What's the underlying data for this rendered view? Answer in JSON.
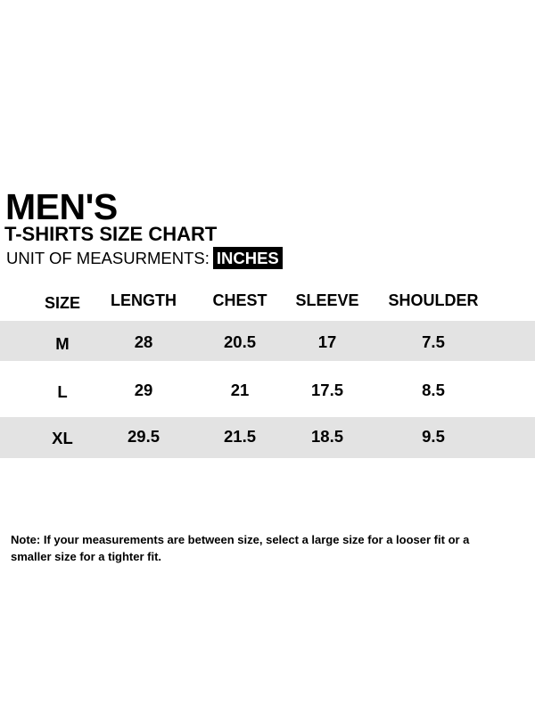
{
  "title": "MEN'S",
  "subtitle": "T-SHIRTS SIZE CHART",
  "unit_label": "UNIT OF MEASURMENTS:",
  "unit_value": "INCHES",
  "colors": {
    "band": "#e3e3e3",
    "badge": "#000000"
  },
  "table": {
    "headers": [
      "SIZE",
      "LENGTH",
      "CHEST",
      "SLEEVE",
      "SHOULDER"
    ],
    "rows": [
      [
        "M",
        "28",
        "20.5",
        "17",
        "7.5"
      ],
      [
        "L",
        "29",
        "21",
        "17.5",
        "8.5"
      ],
      [
        "XL",
        "29.5",
        "21.5",
        "18.5",
        "9.5"
      ]
    ]
  },
  "note": "Note: If your measurements are between size, select a large size for a looser fit or a smaller size for a tighter fit."
}
